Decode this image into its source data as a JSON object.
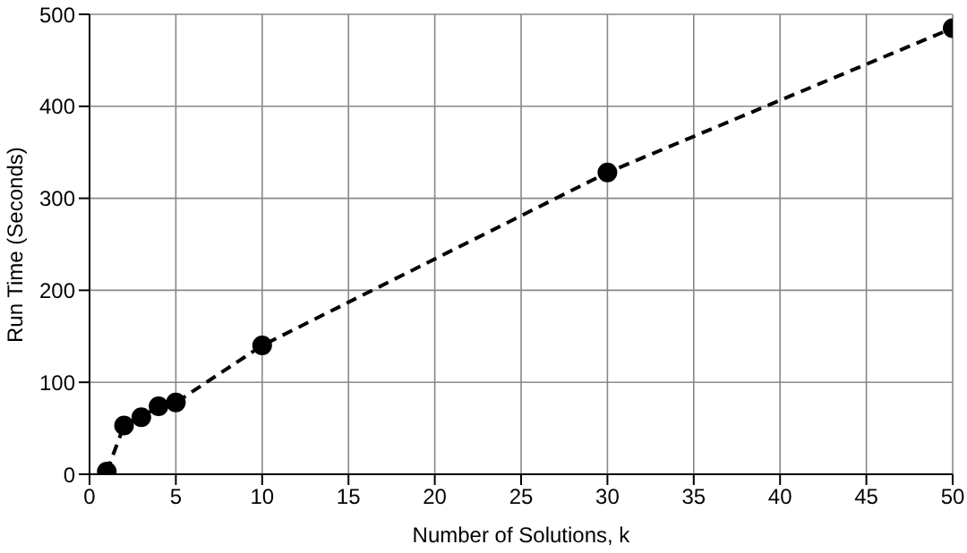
{
  "chart_data": {
    "type": "line",
    "xlabel": "Number of Solutions, k",
    "ylabel": "Run Time (Seconds)",
    "x": [
      1,
      2,
      3,
      4,
      5,
      10,
      30,
      50
    ],
    "series": [
      {
        "color": "#000000",
        "values": [
          3,
          53,
          62,
          74,
          78,
          140,
          328,
          485
        ]
      }
    ],
    "xlim": [
      0,
      50
    ],
    "xticks": [
      0,
      5,
      10,
      15,
      20,
      25,
      30,
      35,
      40,
      45,
      50
    ],
    "ylim": [
      0,
      500
    ],
    "yticks": [
      0,
      100,
      200,
      300,
      400,
      500
    ],
    "grid": true,
    "marker": "circle",
    "line_style": "dashed",
    "legend": false
  }
}
